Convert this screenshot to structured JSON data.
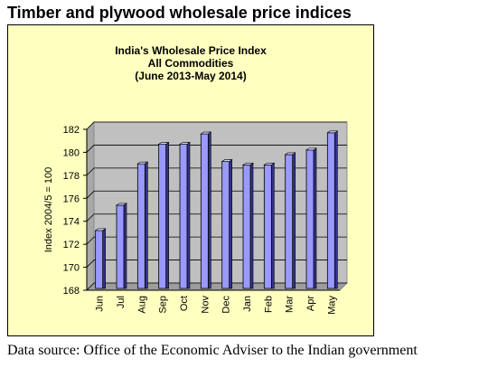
{
  "page": {
    "title": "Timber and plywood wholesale price indices",
    "source": "Data source: Office of the Economic Adviser to the Indian government"
  },
  "chart_data": {
    "type": "bar",
    "title": [
      "India's  Wholesale Price Index",
      "All Commodities",
      "(June 2013-May 2014)"
    ],
    "xlabel": "",
    "ylabel": "Index 2004/5 = 100",
    "categories": [
      "Jun",
      "Jul",
      "Aug",
      "Sep",
      "Oct",
      "Nov",
      "Dec",
      "Jan",
      "Feb",
      "Mar",
      "Apr",
      "May"
    ],
    "values": [
      173.2,
      175.4,
      179.0,
      180.7,
      180.7,
      181.6,
      179.2,
      178.9,
      178.9,
      179.8,
      180.2,
      181.7
    ],
    "ylim": [
      168,
      182
    ],
    "yticks": [
      "168",
      "170",
      "172",
      "174",
      "176",
      "178",
      "180",
      "182"
    ],
    "grid": true,
    "legend": "none",
    "colors": {
      "bar": "#9999ff",
      "plot_area": "#c0c0c0",
      "background": "#ffffc0"
    }
  }
}
